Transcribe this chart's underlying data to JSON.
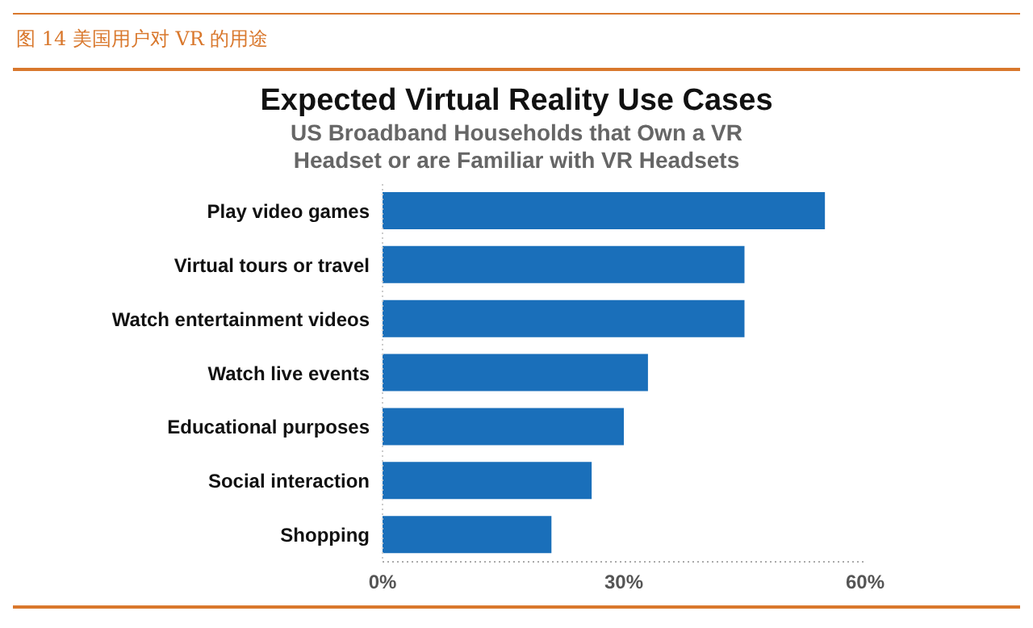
{
  "chart_data": {
    "type": "bar",
    "orientation": "horizontal",
    "title": "Expected Virtual Reality Use Cases",
    "subtitle": "US Broadband Households that Own a VR Headset or are Familiar with VR Headsets",
    "annotations": [
      "图 14 美国用户对 VR 的用途"
    ],
    "categories": [
      "Play video games",
      "Virtual tours or travel",
      "Watch entertainment videos",
      "Watch live events",
      "Educational purposes",
      "Social interaction",
      "Shopping"
    ],
    "values": [
      55,
      45,
      45,
      33,
      30,
      26,
      21
    ],
    "color": "#1a6fba",
    "xlim": [
      0,
      60
    ],
    "xticks": [
      {
        "value": 0,
        "label": "0%"
      },
      {
        "value": 30,
        "label": "30%"
      },
      {
        "value": 60,
        "label": "60%"
      }
    ],
    "grid": false
  }
}
